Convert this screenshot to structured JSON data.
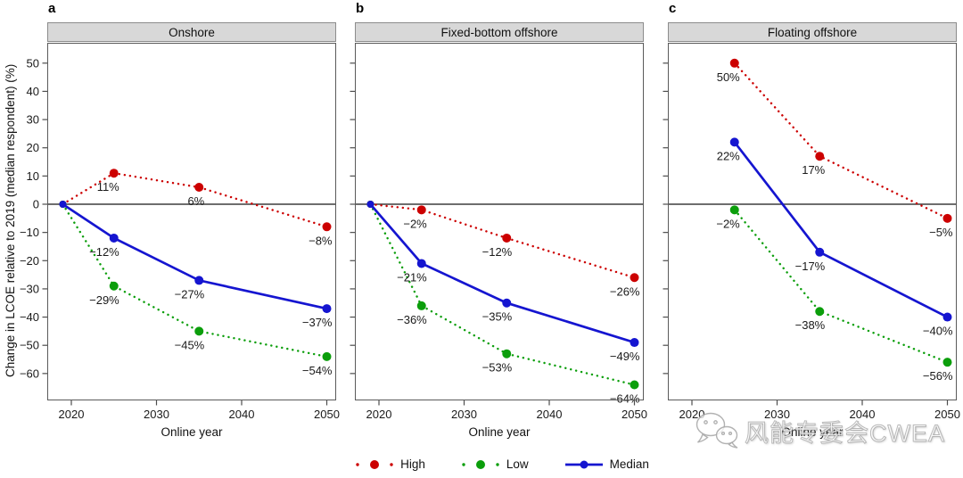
{
  "figure": {
    "watermark_text": "风能专委会CWEA"
  },
  "chart_data": {
    "type": "line",
    "title": "",
    "xlabel": "Online year",
    "ylabel": "Change in LCOE relative to 2019 (median respondent) (%)",
    "xlim": [
      2017.2,
      2051.1
    ],
    "ylim": [
      -69.5,
      57.3
    ],
    "grid": "off",
    "legend_position": "bottom-center",
    "x_ticks": [
      2020,
      2030,
      2040,
      2050
    ],
    "x_tick_labels": [
      "2020",
      "2030",
      "2040",
      "2050"
    ],
    "y_ticks": [
      50,
      40,
      30,
      20,
      10,
      0,
      -10,
      -20,
      -30,
      -40,
      -50,
      -60
    ],
    "y_tick_labels": [
      "50",
      "40",
      "30",
      "20",
      "10",
      "0",
      "−10",
      "−20",
      "−30",
      "−40",
      "−50",
      "−60"
    ],
    "zero_line": 0,
    "colors": {
      "high": "#cc0000",
      "low": "#0b9e0b",
      "median": "#1515d0"
    },
    "panels": [
      {
        "letter": "a",
        "title": "Onshore",
        "xlabel": "Online year",
        "show_y_labels": true,
        "series": [
          {
            "name": "High",
            "style": "dotted",
            "color_key": "high",
            "x": [
              2019,
              2025,
              2035,
              2050
            ],
            "y": [
              0,
              11,
              6,
              -8
            ],
            "point_labels": [
              "",
              "11%",
              "6%",
              "−8%"
            ]
          },
          {
            "name": "Low",
            "style": "dotted",
            "color_key": "low",
            "x": [
              2019,
              2025,
              2035,
              2050
            ],
            "y": [
              0,
              -29,
              -45,
              -54
            ],
            "point_labels": [
              "",
              "−29%",
              "−45%",
              "−54%"
            ]
          },
          {
            "name": "Median",
            "style": "solid",
            "color_key": "median",
            "x": [
              2019,
              2025,
              2035,
              2050
            ],
            "y": [
              0,
              -12,
              -27,
              -37
            ],
            "point_labels": [
              "",
              "−12%",
              "−27%",
              "−37%"
            ]
          }
        ]
      },
      {
        "letter": "b",
        "title": "Fixed-bottom offshore",
        "xlabel": "Online year",
        "show_y_labels": false,
        "series": [
          {
            "name": "High",
            "style": "dotted",
            "color_key": "high",
            "x": [
              2019,
              2025,
              2035,
              2050
            ],
            "y": [
              0,
              -2,
              -12,
              -26
            ],
            "point_labels": [
              "",
              "−2%",
              "−12%",
              "−26%"
            ]
          },
          {
            "name": "Low",
            "style": "dotted",
            "color_key": "low",
            "x": [
              2019,
              2025,
              2035,
              2050
            ],
            "y": [
              0,
              -36,
              -53,
              -64
            ],
            "point_labels": [
              "",
              "−36%",
              "−53%",
              "−64%"
            ]
          },
          {
            "name": "Median",
            "style": "solid",
            "color_key": "median",
            "x": [
              2019,
              2025,
              2035,
              2050
            ],
            "y": [
              0,
              -21,
              -35,
              -49
            ],
            "point_labels": [
              "",
              "−21%",
              "−35%",
              "−49%"
            ]
          }
        ]
      },
      {
        "letter": "c",
        "title": "Floating offshore",
        "xlabel": "Online year",
        "show_y_labels": false,
        "series": [
          {
            "name": "High",
            "style": "dotted",
            "color_key": "high",
            "x": [
              2025,
              2035,
              2050
            ],
            "y": [
              50,
              17,
              -5
            ],
            "point_labels": [
              "50%",
              "17%",
              "−5%"
            ]
          },
          {
            "name": "Low",
            "style": "dotted",
            "color_key": "low",
            "x": [
              2025,
              2035,
              2050
            ],
            "y": [
              -2,
              -38,
              -56
            ],
            "point_labels": [
              "−2%",
              "−38%",
              "−56%"
            ]
          },
          {
            "name": "Median",
            "style": "solid",
            "color_key": "median",
            "x": [
              2025,
              2035,
              2050
            ],
            "y": [
              22,
              -17,
              -40
            ],
            "point_labels": [
              "22%",
              "−17%",
              "−40%"
            ]
          }
        ]
      }
    ],
    "legend": [
      {
        "label": "High",
        "color_key": "high",
        "style": "dotted"
      },
      {
        "label": "Low",
        "color_key": "low",
        "style": "dotted"
      },
      {
        "label": "Median",
        "color_key": "median",
        "style": "solid"
      }
    ]
  }
}
